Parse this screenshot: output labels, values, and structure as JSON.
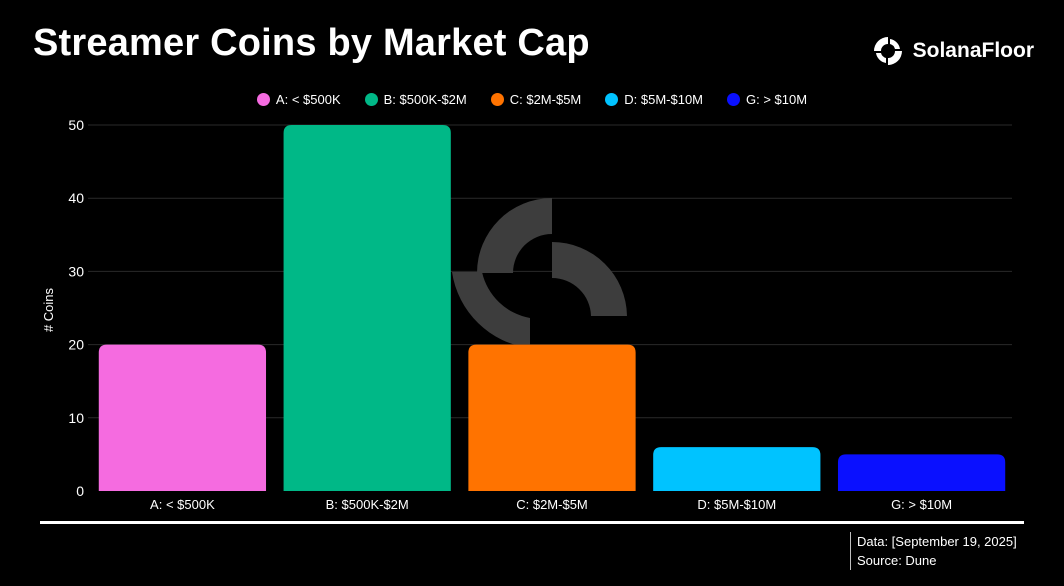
{
  "header": {
    "title": "Streamer Coins by Market Cap",
    "brand": "SolanaFloor"
  },
  "footer": {
    "data_line": "Data: [September 19, 2025]",
    "source_line": "Source: Dune"
  },
  "colors": {
    "background": "#000000",
    "gridline": "#2a2a2a",
    "watermark": "#3a3a3a"
  },
  "icons": {
    "brand_logo": "solanafloor-logo-icon",
    "watermark": "solanafloor-watermark-icon"
  },
  "chart_data": {
    "type": "bar",
    "title": "Streamer Coins by Market Cap",
    "ylabel": "# Coins",
    "xlabel": "",
    "ylim": [
      0,
      50
    ],
    "yticks": [
      0,
      10,
      20,
      30,
      40,
      50
    ],
    "grid": true,
    "legend_position": "top",
    "categories": [
      "A: < $500K",
      "B: $500K-$2M",
      "C: $2M-$5M",
      "D: $5M-$10M",
      "G: > $10M"
    ],
    "values": [
      20,
      50,
      20,
      6,
      5
    ],
    "bar_colors": [
      "#f56be0",
      "#00b887",
      "#ff7300",
      "#00c3ff",
      "#0a10ff"
    ],
    "legend": [
      {
        "label": "A: < $500K",
        "color": "#f56be0"
      },
      {
        "label": "B: $500K-$2M",
        "color": "#00b887"
      },
      {
        "label": "C: $2M-$5M",
        "color": "#ff7300"
      },
      {
        "label": "D: $5M-$10M",
        "color": "#00c3ff"
      },
      {
        "label": "G: > $10M",
        "color": "#0a10ff"
      }
    ]
  }
}
